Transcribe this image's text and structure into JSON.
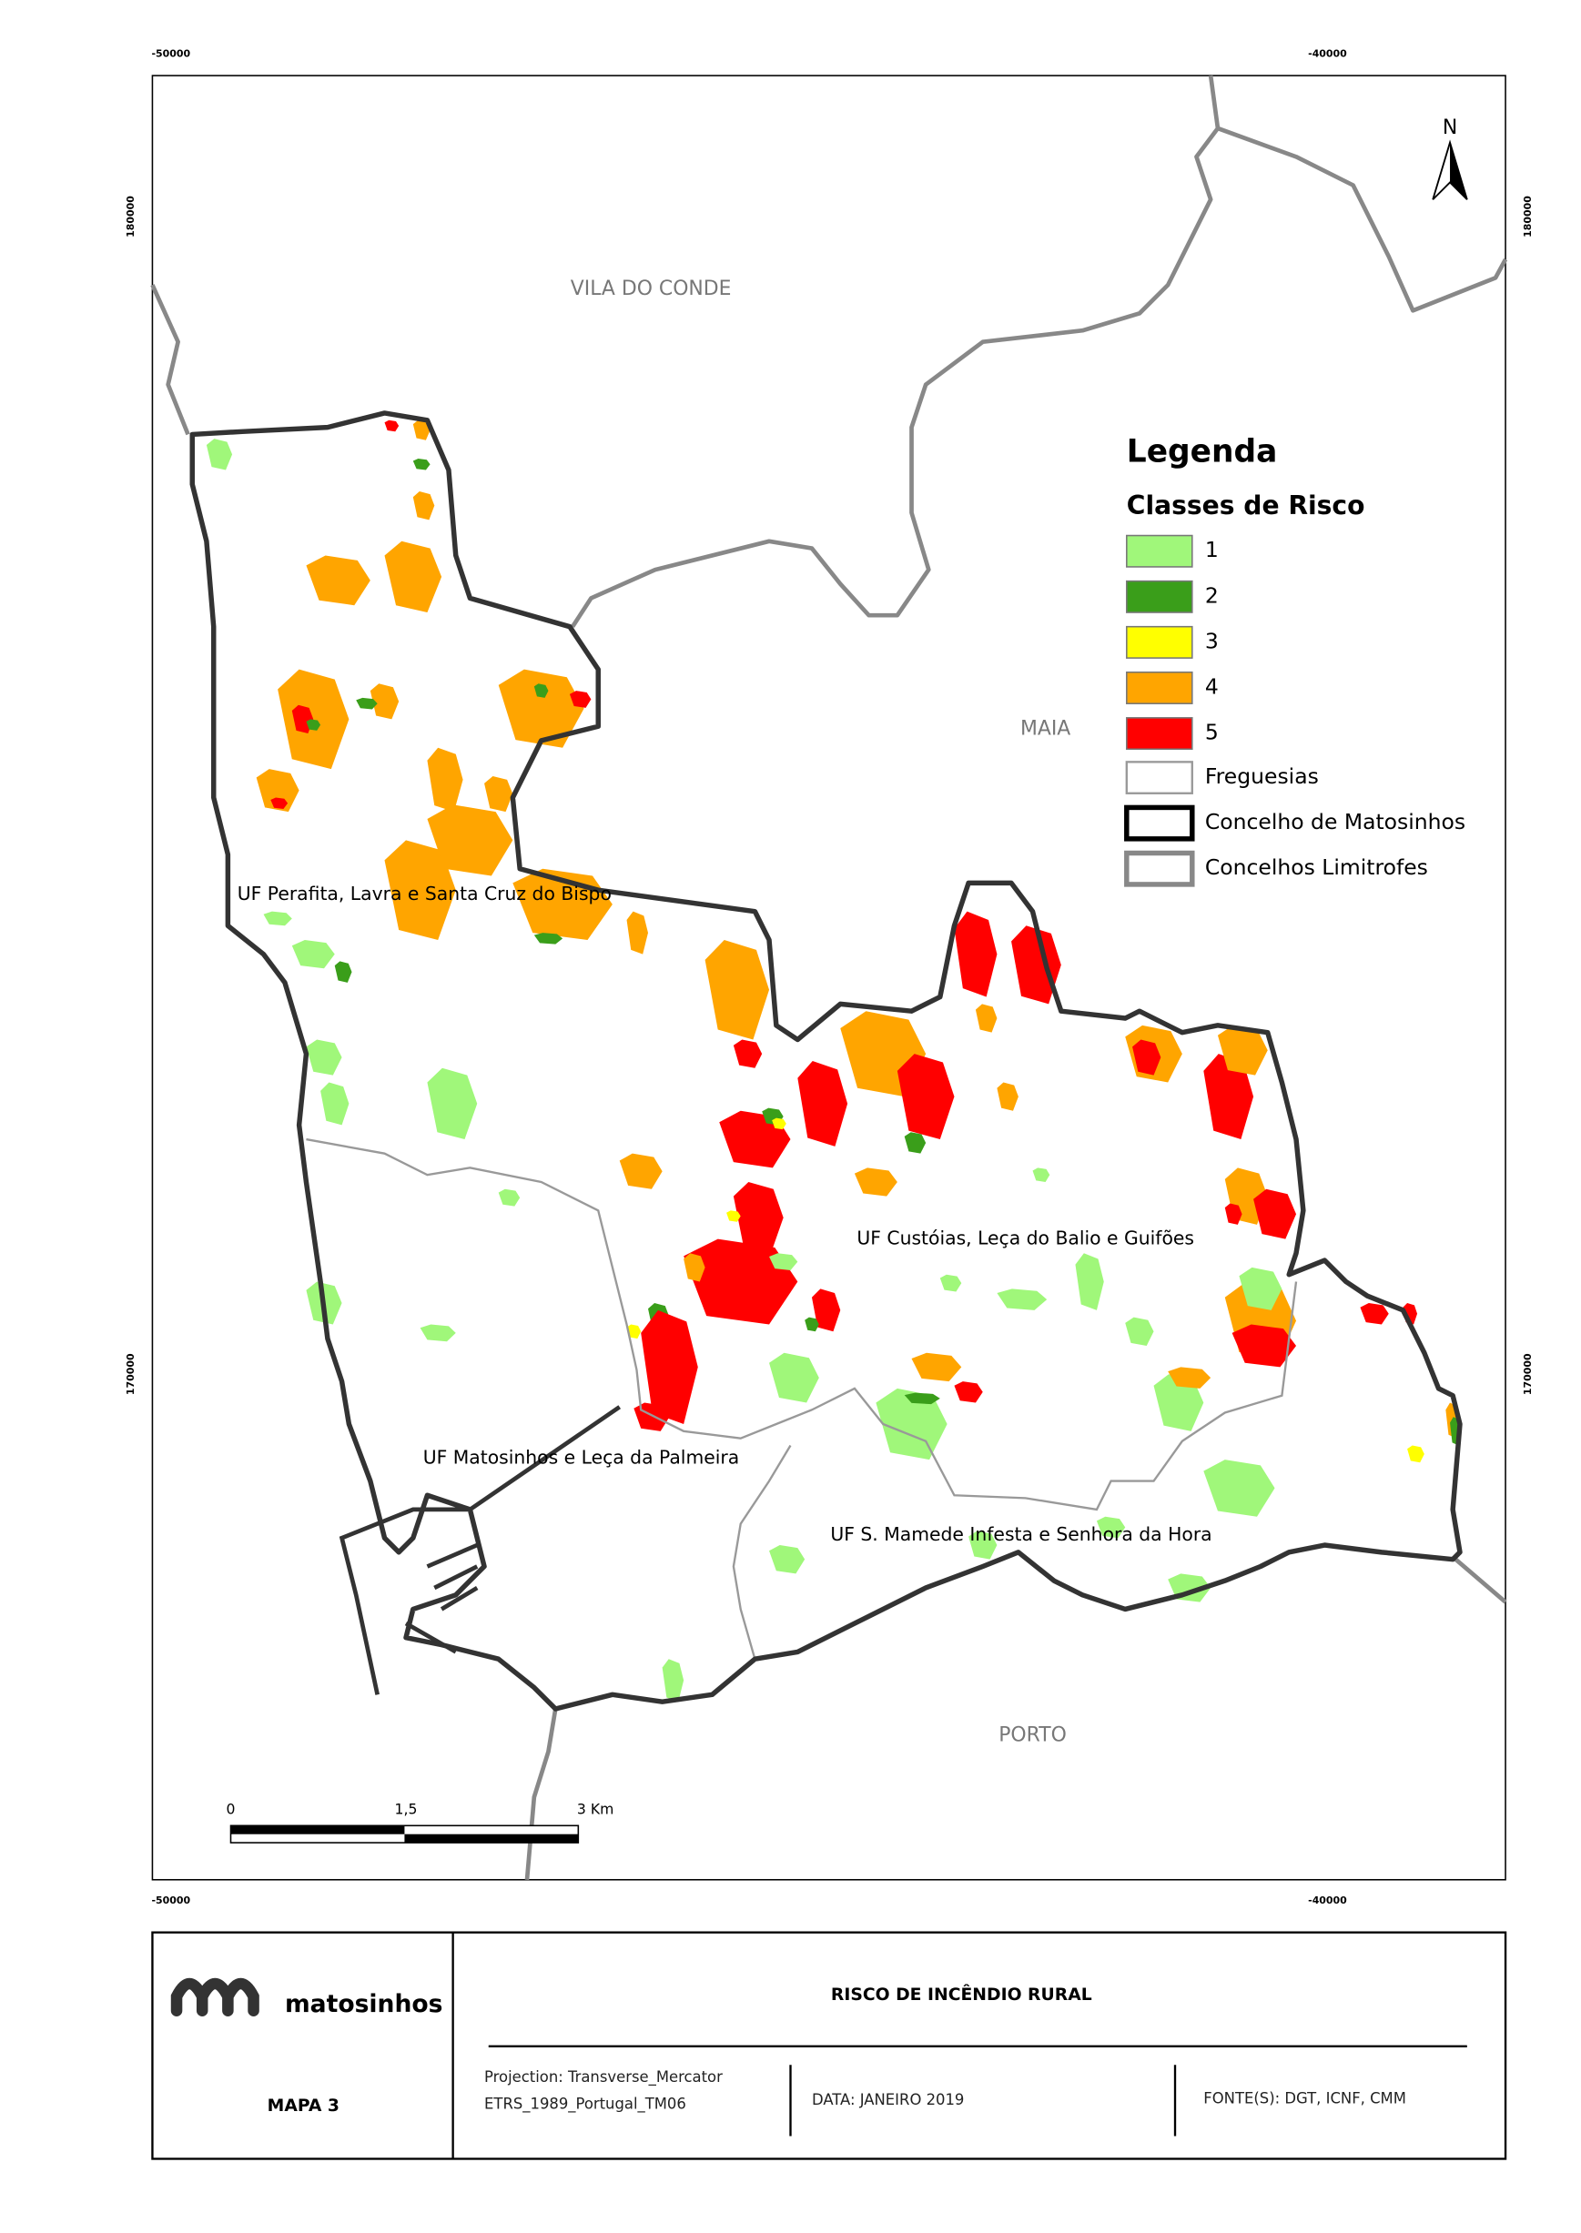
{
  "map": {
    "coords": {
      "top": [
        "-50000",
        "-40000"
      ],
      "bottom": [
        "-50000",
        "-40000"
      ],
      "left": [
        "180000",
        "170000"
      ],
      "right": [
        "180000",
        "170000"
      ]
    },
    "places": [
      "VILA DO CONDE",
      "MAIA",
      "PORTO"
    ],
    "parishes": [
      "UF Perafita, Lavra e Santa Cruz do Bispo",
      "UF Custóias, Leça do Balio e Guifões",
      "UF Matosinhos e Leça da Palmeira",
      "UF S. Mamede Infesta e Senhora da Hora"
    ],
    "north": "N",
    "scale_bar": [
      "0",
      "1,5",
      "3 Km"
    ]
  },
  "legend": {
    "title": "Legenda",
    "subtitle": "Classes de Risco",
    "classes": [
      {
        "label": "1",
        "color": "#a0f77a"
      },
      {
        "label": "2",
        "color": "#3a9e1a"
      },
      {
        "label": "3",
        "color": "#ffff00"
      },
      {
        "label": "4",
        "color": "#ffa500"
      },
      {
        "label": "5",
        "color": "#ff0000"
      }
    ],
    "boundaries": [
      "Freguesias",
      "Concelho de Matosinhos",
      "Concelhos Limitrofes"
    ]
  },
  "footer": {
    "logo": "matosinhos",
    "map_number": "MAPA 3",
    "title": "RISCO DE INCÊNDIO RURAL",
    "projection": [
      "Projection: Transverse_Mercator",
      "ETRS_1989_Portugal_TM06"
    ],
    "date": "DATA: JANEIRO 2019",
    "sources": "FONTE(S): DGT, ICNF, CMM"
  }
}
